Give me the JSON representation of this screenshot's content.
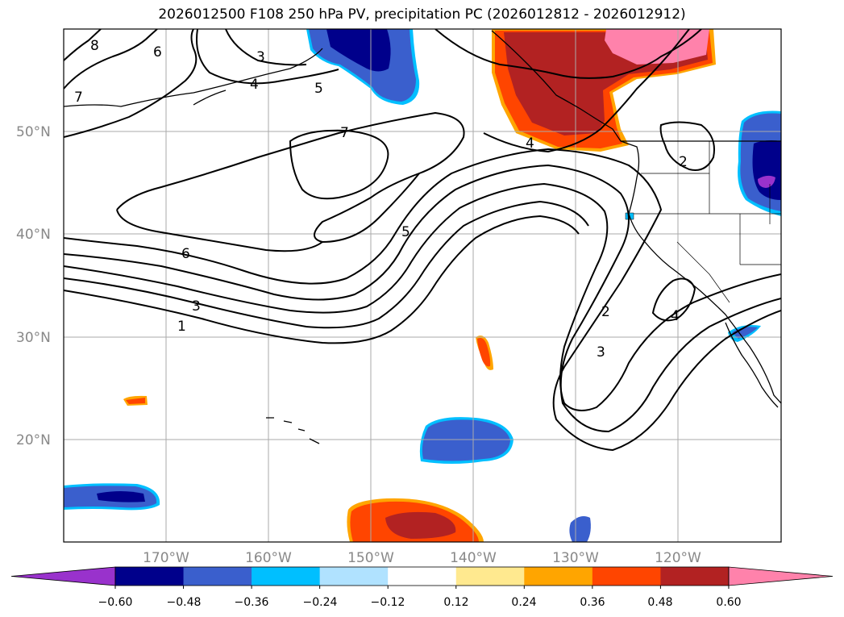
{
  "title": "2026012500 F108 250 hPa PV, precipitation PC (2026012812 - 2026012912)",
  "lat_labels": [
    "50°N",
    "40°N",
    "30°N",
    "20°N"
  ],
  "lon_labels": [
    "170°W",
    "160°W",
    "150°W",
    "140°W",
    "130°W",
    "120°W"
  ],
  "colorbar": {
    "ticks": [
      "−0.60",
      "−0.48",
      "−0.36",
      "−0.24",
      "−0.12",
      "0.12",
      "0.24",
      "0.36",
      "0.48",
      "0.60"
    ],
    "colors": [
      "#9932cc",
      "#00008b",
      "#3a5fcd",
      "#00bfff",
      "#b0e2ff",
      "#ffffff",
      "#ffe98f",
      "#ffa500",
      "#ff4500",
      "#b22222",
      "#ff82ab"
    ]
  },
  "contour_labels": [
    "8",
    "6",
    "3",
    "4",
    "5",
    "7",
    "7",
    "6",
    "5",
    "4",
    "3",
    "1",
    "2",
    "2",
    "3",
    "4"
  ]
}
